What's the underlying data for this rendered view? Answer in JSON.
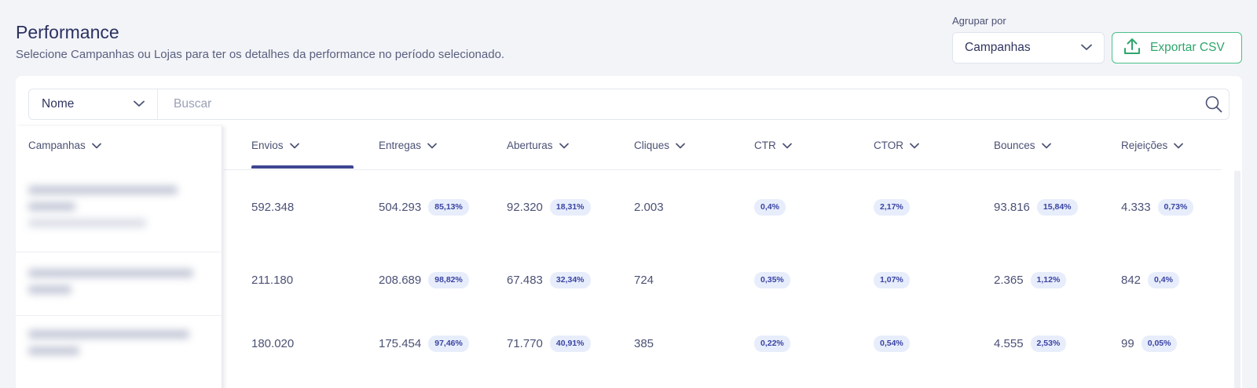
{
  "header": {
    "title": "Performance",
    "subtitle": "Selecione Campanhas ou Lojas para ter os detalhes da performance no período selecionado.",
    "group_label": "Agrupar por",
    "group_value": "Campanhas",
    "export_label": "Exportar CSV"
  },
  "search": {
    "field": "Nome",
    "placeholder": "Buscar"
  },
  "table": {
    "sticky_header": "Campanhas",
    "columns": [
      "Envios",
      "Entregas",
      "Aberturas",
      "Cliques",
      "CTR",
      "CTOR",
      "Bounces",
      "Rejeições"
    ],
    "rows": [
      {
        "envios": "592.348",
        "entregas": "504.293",
        "entregas_pct": "85,13%",
        "aberturas": "92.320",
        "aberturas_pct": "18,31%",
        "cliques": "2.003",
        "ctr": "0,4%",
        "ctor": "2,17%",
        "bounces": "93.816",
        "bounces_pct": "15,84%",
        "rejeicoes": "4.333",
        "rejeicoes_pct": "0,73%"
      },
      {
        "envios": "211.180",
        "entregas": "208.689",
        "entregas_pct": "98,82%",
        "aberturas": "67.483",
        "aberturas_pct": "32,34%",
        "cliques": "724",
        "ctr": "0,35%",
        "ctor": "1,07%",
        "bounces": "2.365",
        "bounces_pct": "1,12%",
        "rejeicoes": "842",
        "rejeicoes_pct": "0,4%"
      },
      {
        "envios": "180.020",
        "entregas": "175.454",
        "entregas_pct": "97,46%",
        "aberturas": "71.770",
        "aberturas_pct": "40,91%",
        "cliques": "385",
        "ctr": "0,22%",
        "ctor": "0,54%",
        "bounces": "4.555",
        "bounces_pct": "2,53%",
        "rejeicoes": "99",
        "rejeicoes_pct": "0,05%"
      }
    ]
  },
  "colors": {
    "accent": "#3e4591",
    "export_green": "#2fa56c",
    "badge_bg": "#e7edfb",
    "badge_text": "#3a44a3"
  },
  "icons": {
    "chevron": "chevron-down-icon",
    "upload": "upload-icon",
    "search": "search-icon"
  }
}
